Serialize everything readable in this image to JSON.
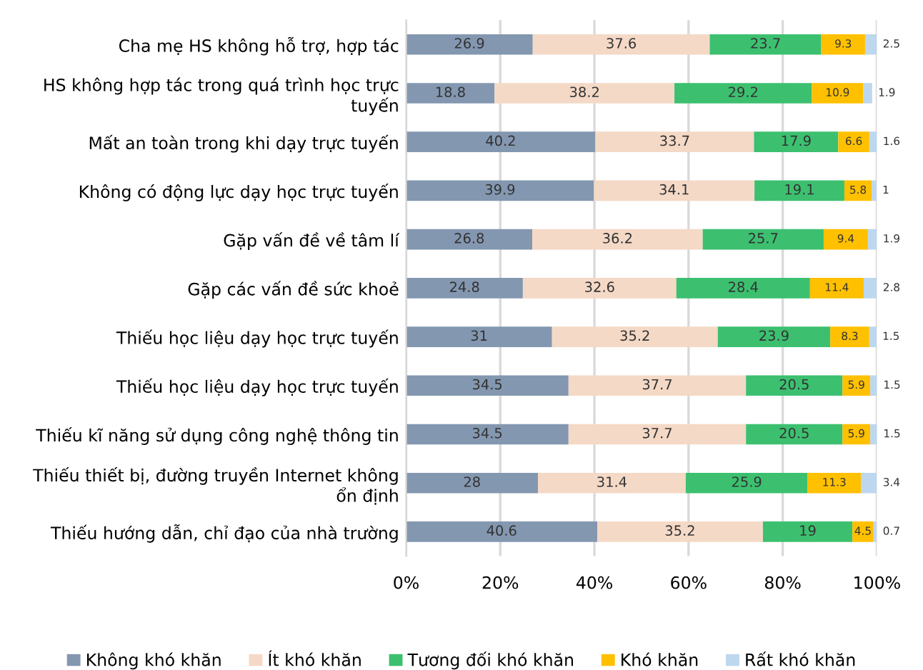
{
  "chart_data": {
    "type": "bar",
    "orientation": "horizontal",
    "stacked": true,
    "data_labels": true,
    "grid": "x",
    "legend": "bottom",
    "categories": [
      "Cha mẹ HS không hỗ trợ, hợp tác",
      "HS không hợp tác trong quá trình học trực tuyến",
      "Mất an toàn trong khi dạy trực tuyến",
      "Không có động lực dạy học trực tuyến",
      "Gặp vấn đề về tâm lí",
      "Gặp các vấn đề sức khoẻ",
      "Thiếu học liệu dạy học trực tuyến",
      "Thiếu học liệu dạy học trực tuyến",
      "Thiếu kĩ năng sử dụng công nghệ thông tin",
      "Thiếu thiết bị, đường truyền Internet không ổn định",
      "Thiếu hướng dẫn, chỉ đạo của nhà trường"
    ],
    "xlim": [
      0,
      100
    ],
    "xticks": [
      {
        "value": 0,
        "label": "0%"
      },
      {
        "value": 20,
        "label": "20%"
      },
      {
        "value": 40,
        "label": "40%"
      },
      {
        "value": 60,
        "label": "60%"
      },
      {
        "value": 80,
        "label": "80%"
      },
      {
        "value": 100,
        "label": "100%"
      }
    ],
    "series": [
      {
        "name": "Không khó khăn",
        "color": "#8497b0",
        "values": [
          26.9,
          18.8,
          40.2,
          39.9,
          26.8,
          24.8,
          31,
          34.5,
          34.5,
          28,
          40.6
        ]
      },
      {
        "name": "Ít khó khăn",
        "color": "#f4d9c6",
        "values": [
          37.6,
          38.2,
          33.7,
          34.1,
          36.2,
          32.6,
          35.2,
          37.7,
          37.7,
          31.4,
          35.2
        ]
      },
      {
        "name": "Tương đối khó khăn",
        "color": "#3cc070",
        "values": [
          23.7,
          29.2,
          17.9,
          19.1,
          25.7,
          28.4,
          23.9,
          20.5,
          20.5,
          25.9,
          19
        ]
      },
      {
        "name": "Khó khăn",
        "color": "#ffc000",
        "values": [
          9.3,
          10.9,
          6.6,
          5.8,
          9.4,
          11.4,
          8.3,
          5.9,
          5.9,
          11.3,
          4.5
        ]
      },
      {
        "name": "Rất khó khăn",
        "color": "#bdd7ee",
        "values": [
          2.5,
          1.9,
          1.6,
          1,
          1.9,
          2.8,
          1.5,
          1.5,
          1.5,
          3.4,
          0.7
        ]
      }
    ]
  }
}
